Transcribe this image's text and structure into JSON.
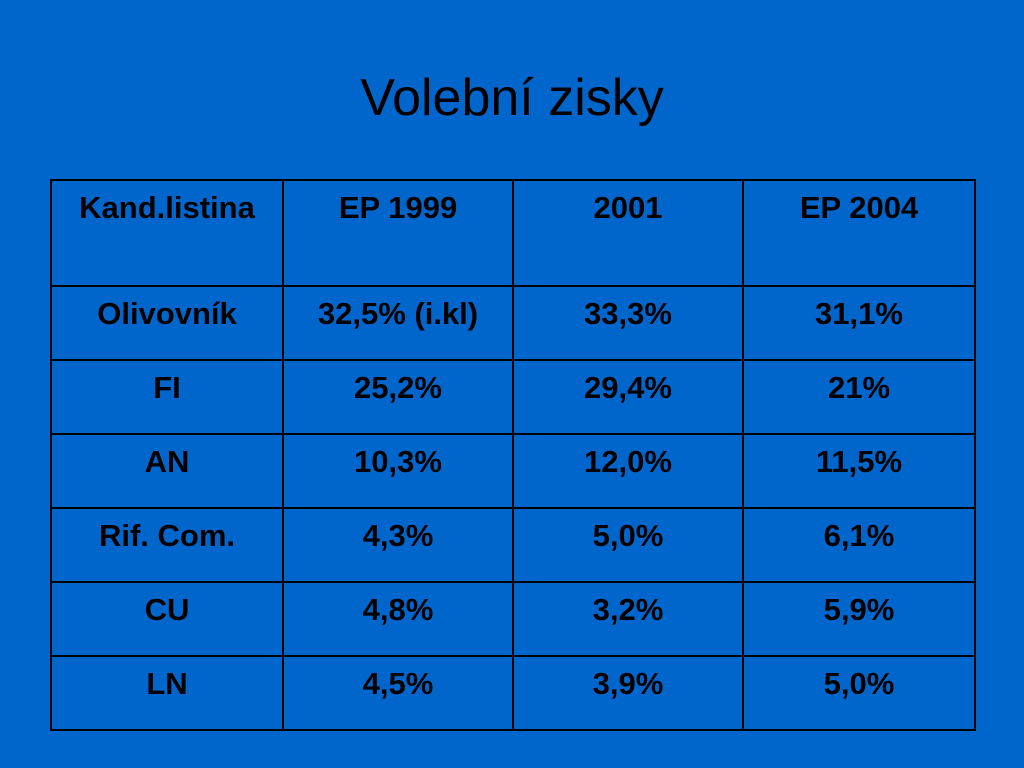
{
  "slide": {
    "title": "Volební zisky",
    "background": "#0066cc"
  },
  "table": {
    "headers": [
      "Kand.listina",
      "EP 1999",
      "2001",
      "EP 2004"
    ],
    "rows": [
      [
        "Olivovník",
        "32,5% (i.kl)",
        "33,3%",
        "31,1%"
      ],
      [
        "FI",
        "25,2%",
        "29,4%",
        "21%"
      ],
      [
        "AN",
        "10,3%",
        "12,0%",
        "11,5%"
      ],
      [
        "Rif. Com.",
        "4,3%",
        "5,0%",
        "6,1%"
      ],
      [
        "CU",
        "4,8%",
        "3,2%",
        "5,9%"
      ],
      [
        "LN",
        "4,5%",
        "3,9%",
        "5,0%"
      ]
    ]
  }
}
